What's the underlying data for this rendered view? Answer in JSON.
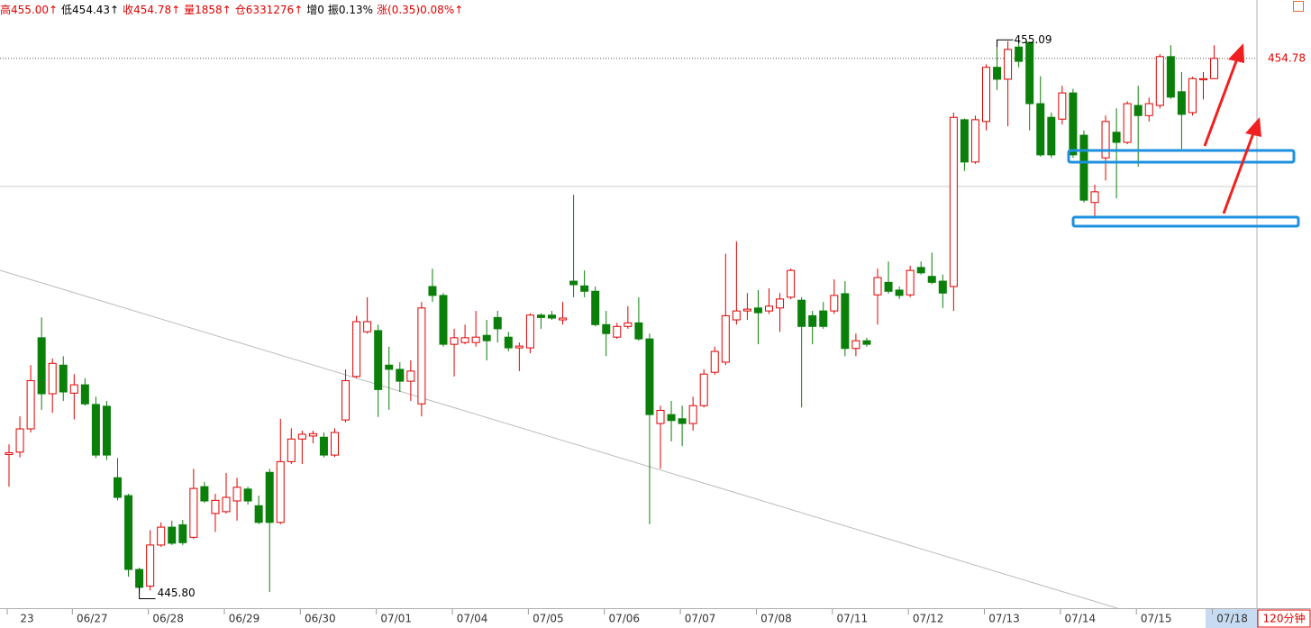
{
  "header": [
    {
      "text": "高455.00↑",
      "color": "#e00000"
    },
    {
      "text": "低454.43↑",
      "color": "#000000"
    },
    {
      "text": "收454.78↑",
      "color": "#e00000"
    },
    {
      "text": "量1858↑",
      "color": "#e00000"
    },
    {
      "text": "仓6331276↑",
      "color": "#e00000"
    },
    {
      "text": "增0",
      "color": "#000000"
    },
    {
      "text": "振0.13%",
      "color": "#000000"
    },
    {
      "text": "涨(0.35)0.08%↑",
      "color": "#e00000"
    }
  ],
  "chart_data": {
    "type": "candlestick",
    "period": "120分钟",
    "up_color": "#e00000",
    "down_color": "#0a7f0a",
    "ylim": [
      445.55,
      455.76
    ],
    "last_price": 454.78,
    "high_marker": {
      "value": 455.09,
      "label": "455.09"
    },
    "low_marker": {
      "value": 445.8,
      "label": "445.80"
    },
    "categories": [
      "23",
      null,
      null,
      null,
      null,
      null,
      "06/27",
      null,
      null,
      null,
      null,
      null,
      null,
      "06/28",
      null,
      null,
      null,
      null,
      null,
      null,
      "06/29",
      null,
      null,
      null,
      null,
      null,
      null,
      "06/30",
      null,
      null,
      null,
      null,
      null,
      null,
      "07/01",
      null,
      null,
      null,
      null,
      null,
      null,
      "07/04",
      null,
      null,
      null,
      null,
      null,
      null,
      "07/05",
      null,
      null,
      null,
      null,
      null,
      null,
      "07/06",
      null,
      null,
      null,
      null,
      null,
      null,
      "07/07",
      null,
      null,
      null,
      null,
      null,
      null,
      "07/08",
      null,
      null,
      null,
      null,
      null,
      null,
      "07/11",
      null,
      null,
      null,
      null,
      null,
      null,
      "07/12",
      null,
      null,
      null,
      null,
      null,
      null,
      "07/13",
      null,
      null,
      null,
      null,
      null,
      null,
      "07/14",
      null,
      null,
      null,
      null,
      null,
      null,
      "07/15",
      null,
      null,
      null,
      null,
      null,
      null,
      "07/18"
    ],
    "open": [
      448.13,
      448.17,
      448.56,
      450.09,
      449.15,
      449.63,
      449.16,
      449.3,
      448.97,
      448.94,
      447.74,
      447.44,
      446.2,
      445.92,
      446.61,
      446.91,
      446.95,
      446.74,
      447.59,
      447.14,
      447.17,
      447.35,
      447.55,
      447.27,
      447.83,
      446.99,
      448.01,
      448.39,
      448.44,
      448.42,
      448.12,
      448.71,
      449.44,
      450.19,
      450.21,
      449.63,
      449.56,
      449.36,
      448.98,
      450.95,
      450.8,
      449.98,
      450.01,
      450.01,
      450.13,
      450.43,
      450.1,
      449.92,
      449.92,
      450.47,
      450.47,
      450.39,
      451.04,
      450.96,
      450.87,
      450.31,
      450.1,
      450.28,
      450.34,
      450.07,
      448.65,
      448.8,
      448.73,
      448.65,
      448.95,
      449.51,
      449.68,
      450.39,
      450.54,
      450.59,
      450.54,
      450.59,
      450.77,
      450.72,
      450.46,
      450.54,
      450.54,
      450.83,
      449.91,
      450.04,
      450.81,
      451.02,
      450.89,
      450.81,
      451.27,
      451.12,
      451.04,
      450.95,
      453.75,
      453.04,
      453.72,
      454.63,
      454.43,
      454.97,
      455.05,
      454.02,
      453.79,
      453.76,
      454.2,
      453.49,
      452.36,
      453.11,
      453.54,
      453.37,
      453.99,
      453.82,
      453.99,
      454.81,
      454.22,
      453.87,
      454.42,
      454.44
    ],
    "high": [
      448.3,
      448.77,
      449.63,
      450.43,
      449.74,
      449.78,
      449.48,
      449.41,
      449.1,
      449.03,
      448.07,
      447.47,
      446.23,
      446.86,
      446.99,
      447.02,
      447.03,
      447.89,
      447.67,
      447.47,
      447.82,
      447.74,
      447.59,
      447.44,
      447.89,
      448.73,
      448.57,
      448.53,
      448.53,
      448.5,
      448.57,
      449.56,
      450.46,
      450.77,
      450.31,
      449.94,
      449.68,
      449.71,
      450.69,
      451.25,
      450.84,
      450.24,
      450.31,
      450.54,
      450.39,
      450.54,
      450.19,
      450.01,
      450.5,
      450.5,
      450.54,
      450.69,
      452.49,
      451.22,
      450.95,
      450.54,
      450.34,
      450.62,
      450.77,
      450.16,
      448.95,
      449.03,
      448.95,
      449.1,
      449.56,
      449.94,
      451.5,
      451.71,
      450.84,
      450.89,
      450.92,
      450.84,
      451.25,
      450.77,
      450.54,
      450.69,
      451.07,
      451.04,
      450.16,
      450.09,
      451.25,
      451.37,
      450.95,
      451.3,
      451.37,
      451.52,
      451.15,
      453.87,
      453.77,
      453.82,
      454.68,
      455.09,
      455.07,
      455.06,
      455.05,
      454.48,
      453.87,
      454.32,
      454.27,
      453.57,
      452.66,
      453.82,
      453.94,
      454.06,
      454.32,
      454.12,
      454.85,
      455.0,
      454.55,
      454.47,
      454.55,
      455.0
    ],
    "low": [
      447.59,
      448.08,
      448.5,
      448.88,
      448.83,
      449.03,
      448.72,
      448.95,
      448.07,
      448.04,
      447.36,
      446.08,
      445.8,
      445.85,
      446.58,
      446.61,
      446.61,
      446.71,
      447.32,
      446.83,
      447.14,
      447.02,
      447.29,
      446.96,
      445.82,
      446.96,
      447.97,
      447.97,
      448.32,
      448.08,
      448.09,
      448.67,
      449.41,
      450.16,
      448.76,
      448.88,
      449.18,
      449.03,
      448.77,
      450.69,
      449.94,
      449.44,
      449.98,
      449.94,
      449.71,
      450.01,
      449.86,
      449.53,
      449.83,
      450.24,
      450.39,
      450.31,
      450.77,
      450.77,
      450.28,
      449.78,
      450.07,
      450.24,
      450.04,
      446.96,
      447.89,
      448.35,
      448.27,
      448.53,
      448.92,
      449.47,
      449.63,
      450.31,
      450.39,
      449.98,
      450.49,
      450.19,
      450.74,
      448.92,
      449.98,
      450.24,
      450.49,
      449.78,
      449.78,
      449.94,
      450.31,
      450.83,
      450.74,
      450.77,
      451.15,
      450.99,
      450.59,
      450.54,
      452.89,
      453.01,
      453.57,
      454.25,
      453.64,
      454.63,
      453.57,
      453.13,
      453.11,
      453.67,
      453.11,
      452.36,
      452.13,
      452.73,
      452.43,
      453.34,
      452.96,
      453.72,
      453.94,
      454.1,
      453.26,
      453.82,
      454.09,
      454.43
    ],
    "close": [
      448.16,
      448.56,
      449.37,
      449.15,
      449.66,
      449.18,
      449.3,
      448.98,
      448.12,
      448.12,
      447.41,
      446.2,
      445.9,
      446.61,
      446.91,
      446.64,
      446.65,
      447.56,
      447.35,
      447.36,
      447.41,
      447.58,
      447.35,
      446.99,
      446.99,
      448.01,
      448.39,
      448.47,
      448.48,
      448.12,
      448.5,
      449.37,
      450.36,
      450.36,
      449.22,
      449.56,
      449.36,
      449.53,
      450.59,
      450.8,
      449.98,
      450.09,
      450.09,
      450.1,
      450.04,
      450.24,
      449.92,
      449.95,
      450.47,
      450.43,
      450.42,
      450.42,
      450.98,
      450.87,
      450.31,
      450.16,
      450.28,
      450.34,
      450.07,
      448.8,
      448.87,
      448.7,
      448.65,
      448.95,
      449.48,
      449.86,
      450.46,
      450.54,
      450.57,
      450.51,
      450.62,
      450.74,
      451.22,
      450.28,
      450.28,
      450.28,
      450.8,
      449.91,
      450.04,
      449.98,
      451.1,
      450.87,
      450.8,
      451.22,
      451.18,
      451.02,
      450.84,
      453.79,
      453.04,
      453.75,
      454.63,
      454.43,
      454.93,
      454.73,
      454.02,
      453.16,
      453.16,
      454.2,
      453.16,
      452.4,
      452.54,
      453.72,
      453.37,
      454.02,
      453.82,
      454.02,
      454.81,
      454.13,
      453.84,
      454.44,
      454.44,
      454.78
    ]
  }
}
